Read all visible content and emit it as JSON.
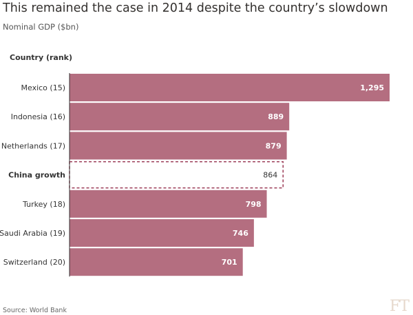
{
  "title": "This remained the case in 2014 despite the country’s slowdown",
  "subtitle": "Nominal GDP ($bn)",
  "source": "Source: World Bank",
  "logo": "FT",
  "colors": {
    "bar": "#b46e80",
    "highlight_border": "#9b3a55",
    "axis": "#333333"
  },
  "chart_data": {
    "type": "bar",
    "orientation": "horizontal",
    "category_axis_label": "Country (rank)",
    "categories": [
      "Mexico (15)",
      "Indonesia (16)",
      "Netherlands (17)",
      "China growth",
      "Turkey (18)",
      "Saudi Arabia (19)",
      "Switzerland (20)"
    ],
    "values": [
      1295,
      889,
      879,
      864,
      798,
      746,
      701
    ],
    "value_labels": [
      "1,295",
      "889",
      "879",
      "864",
      "798",
      "746",
      "701"
    ],
    "highlighted": "China growth",
    "xlim": [
      0,
      1295
    ]
  }
}
